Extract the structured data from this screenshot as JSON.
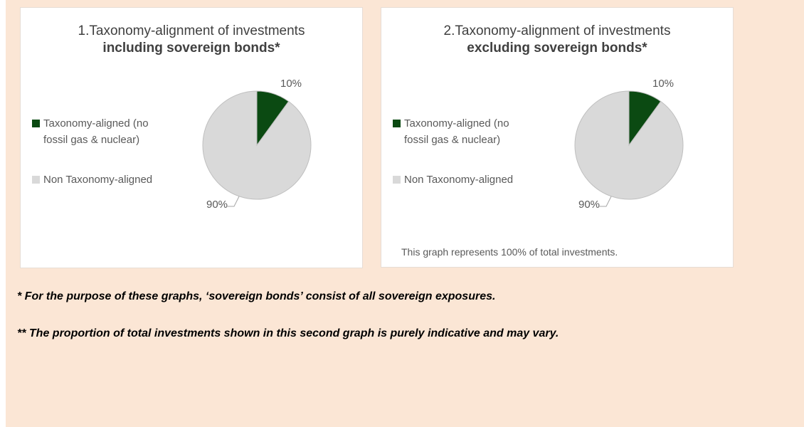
{
  "chart_data": [
    {
      "type": "pie",
      "title": "1.Taxonomy-alignment of investments",
      "subtitle": "including sovereign bonds*",
      "categories": [
        "Taxonomy-aligned (no fossil gas & nuclear)",
        "Non Taxonomy-aligned"
      ],
      "values": [
        10,
        90
      ],
      "value_labels": [
        "10%",
        "90%"
      ],
      "colors": [
        "#0b4a12",
        "#d9d9d9"
      ],
      "legend": "left"
    },
    {
      "type": "pie",
      "title": "2.Taxonomy-alignment of investments",
      "subtitle": "excluding sovereign bonds*",
      "categories": [
        "Taxonomy-aligned (no fossil gas & nuclear)",
        "Non Taxonomy-aligned"
      ],
      "values": [
        10,
        90
      ],
      "value_labels": [
        "10%",
        "90%"
      ],
      "colors": [
        "#0b4a12",
        "#d9d9d9"
      ],
      "legend": "left",
      "note": "This graph represents 100% of total investments."
    }
  ],
  "footnotes": [
    "* For the purpose of these graphs, ‘sovereign bonds’ consist of all sovereign exposures.",
    "** The proportion of total investments shown in this second graph is purely indicative and may vary."
  ]
}
